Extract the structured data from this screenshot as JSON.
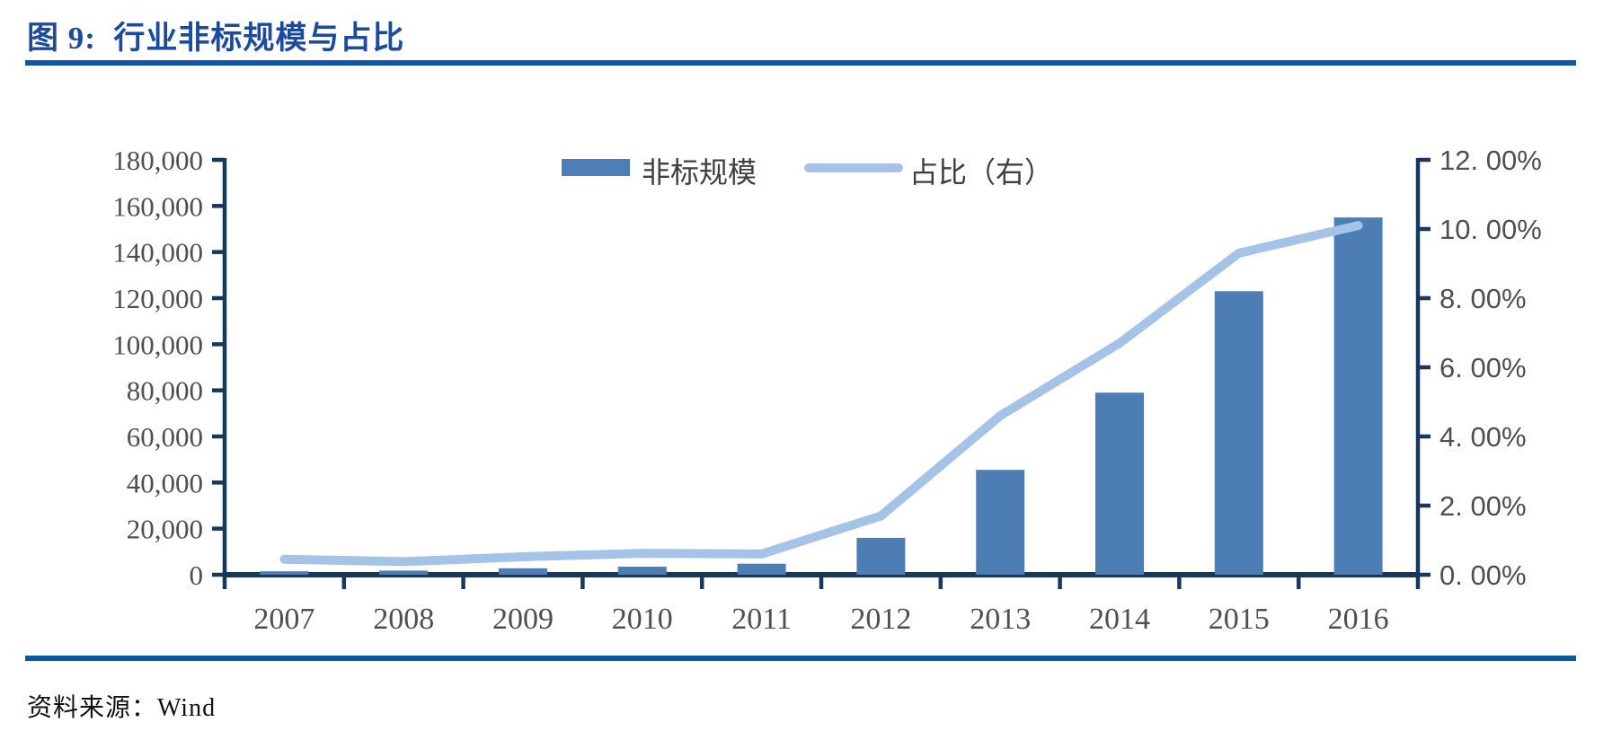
{
  "figure": {
    "source_label": "资料来源：Wind"
  },
  "chart_data": {
    "type": "combo",
    "title": "图 9:  行业非标规模与占比",
    "categories": [
      "2007",
      "2008",
      "2009",
      "2010",
      "2011",
      "2012",
      "2013",
      "2014",
      "2015",
      "2016"
    ],
    "series": [
      {
        "name": "非标规模",
        "type": "bar",
        "axis": "left",
        "color": "#4C7EB5",
        "values": [
          1500,
          1800,
          2800,
          3500,
          4800,
          16000,
          45500,
          79000,
          123000,
          155000
        ]
      },
      {
        "name": "占比（右）",
        "type": "line",
        "axis": "right",
        "color": "#A5C2E7",
        "values": [
          0.45,
          0.38,
          0.52,
          0.62,
          0.6,
          1.7,
          4.6,
          6.7,
          9.3,
          10.1
        ]
      }
    ],
    "left_axis": {
      "min": 0,
      "max": 180000,
      "step": 20000,
      "tick_labels": [
        "180,000",
        "160,000",
        "140,000",
        "120,000",
        "100,000",
        "80,000",
        "60,000",
        "40,000",
        "20,000",
        "0"
      ]
    },
    "right_axis": {
      "min": 0,
      "max": 12,
      "step": 2,
      "tick_labels": [
        "12. 00%",
        "10. 00%",
        "8. 00%",
        "6. 00%",
        "4. 00%",
        "2. 00%",
        "0. 00%"
      ]
    },
    "legend": {
      "position": "top-center",
      "entries": [
        "非标规模",
        "占比（右）"
      ]
    },
    "grid": false,
    "colors": {
      "axis": "#17375d",
      "tick_label": "#4f4f4f",
      "title": "#1c4a9c",
      "rule": "#0d57a6"
    }
  }
}
